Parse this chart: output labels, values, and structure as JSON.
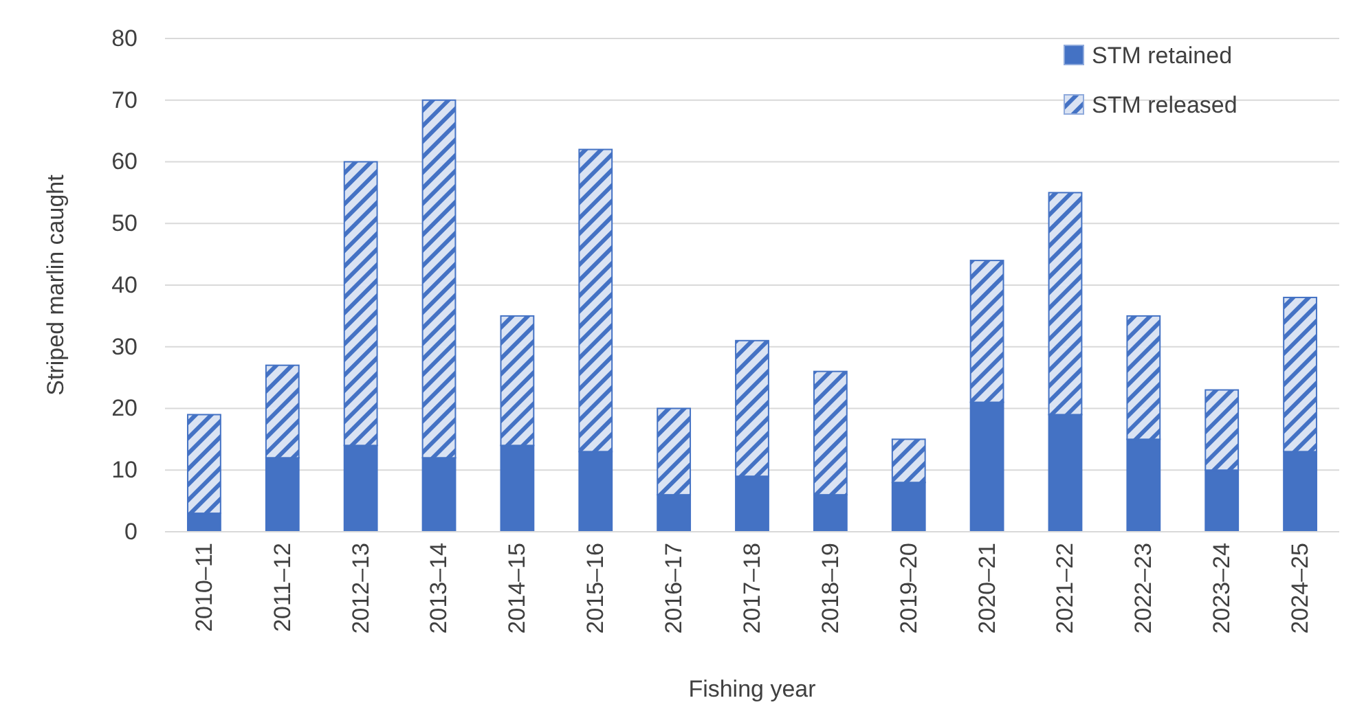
{
  "chart_data": {
    "type": "bar",
    "stacked": true,
    "xlabel": "Fishing year",
    "ylabel": "Striped marlin caught",
    "categories": [
      "2010–11",
      "2011–12",
      "2012–13",
      "2013–14",
      "2014–15",
      "2015–16",
      "2016–17",
      "2017–18",
      "2018–19",
      "2019–20",
      "2020–21",
      "2021–22",
      "2022–23",
      "2023–24",
      "2024–25"
    ],
    "series": [
      {
        "name": "STM retained",
        "color": "#4472c4",
        "values": [
          3,
          12,
          14,
          12,
          14,
          13,
          6,
          9,
          6,
          8,
          21,
          19,
          15,
          10,
          13
        ]
      },
      {
        "name": "STM released",
        "color": "#4472c4",
        "values": [
          16,
          15,
          46,
          58,
          21,
          49,
          14,
          22,
          20,
          7,
          23,
          36,
          20,
          13,
          25
        ]
      }
    ],
    "ylim": [
      0,
      80
    ],
    "yticks": [
      0,
      10,
      20,
      30,
      40,
      50,
      60,
      70,
      80
    ],
    "grid": "y",
    "legend": "top right"
  }
}
